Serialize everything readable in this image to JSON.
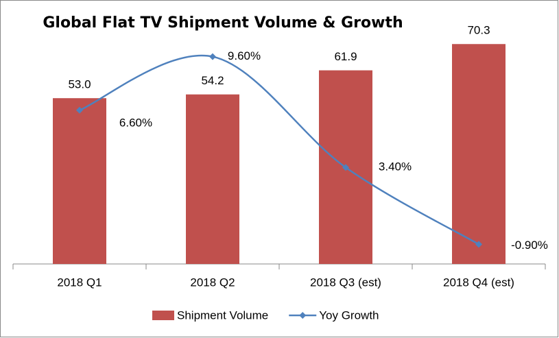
{
  "chart_data": {
    "type": "bar_line",
    "title": "Global Flat TV Shipment Volume & Growth",
    "categories": [
      "2018 Q1",
      "2018 Q2",
      "2018 Q3 (est)",
      "2018 Q4 (est)"
    ],
    "series": [
      {
        "name": "Shipment Volume",
        "type": "bar",
        "color": "#c0504d",
        "values": [
          53.0,
          54.2,
          61.9,
          70.3
        ],
        "value_labels": [
          "53.0",
          "54.2",
          "61.9",
          "70.3"
        ]
      },
      {
        "name": "Yoy Growth",
        "type": "line",
        "axis": "y2",
        "color": "#4f81bd",
        "values": [
          6.6,
          9.6,
          3.4,
          -0.9
        ],
        "value_labels": [
          "6.60%",
          "9.60%",
          "3.40%",
          "-0.90%"
        ]
      }
    ],
    "ylim": [
      0,
      80
    ],
    "y2lim": [
      -2,
      12
    ],
    "legend": "bottom"
  }
}
